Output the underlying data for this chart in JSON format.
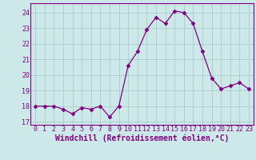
{
  "x": [
    0,
    1,
    2,
    3,
    4,
    5,
    6,
    7,
    8,
    9,
    10,
    11,
    12,
    13,
    14,
    15,
    16,
    17,
    18,
    19,
    20,
    21,
    22,
    23
  ],
  "y": [
    18.0,
    18.0,
    18.0,
    17.8,
    17.5,
    17.9,
    17.8,
    18.0,
    17.3,
    18.0,
    20.6,
    21.5,
    22.9,
    23.7,
    23.3,
    24.1,
    24.0,
    23.3,
    21.5,
    19.8,
    19.1,
    19.3,
    19.5,
    19.1
  ],
  "line_color": "#800080",
  "marker": "D",
  "marker_size": 2.5,
  "bg_color": "#cde8e8",
  "grid_color": "#aacccc",
  "xlabel": "Windchill (Refroidissement éolien,°C)",
  "xlabel_color": "#800080",
  "ylabel_ticks": [
    17,
    18,
    19,
    20,
    21,
    22,
    23,
    24
  ],
  "xlim": [
    -0.5,
    23.5
  ],
  "ylim": [
    16.8,
    24.6
  ],
  "xtick_labels": [
    "0",
    "1",
    "2",
    "3",
    "4",
    "5",
    "6",
    "7",
    "8",
    "9",
    "10",
    "11",
    "12",
    "13",
    "14",
    "15",
    "16",
    "17",
    "18",
    "19",
    "20",
    "21",
    "22",
    "23"
  ],
  "tick_color": "#800080",
  "spine_color": "#800080",
  "tick_fontsize": 6,
  "xlabel_fontsize": 7
}
